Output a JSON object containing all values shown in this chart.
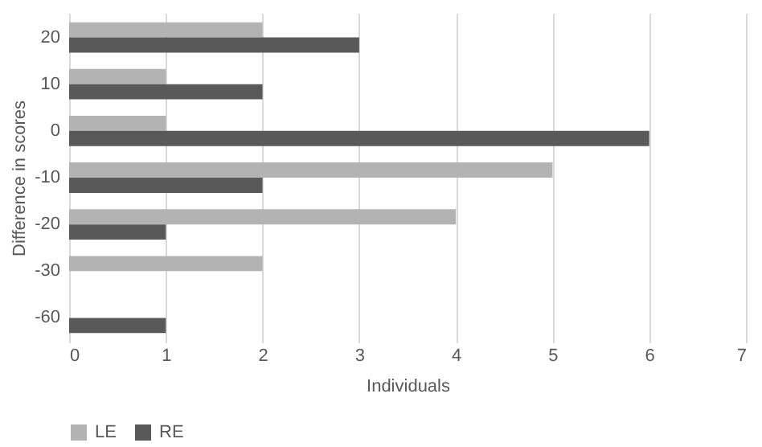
{
  "chart_data": {
    "type": "bar",
    "orientation": "horizontal",
    "xlabel": "Individuals",
    "ylabel": "Difference in scores",
    "categories": [
      "20",
      "10",
      "0",
      "-10",
      "-20",
      "-30",
      "-60"
    ],
    "series": [
      {
        "name": "LE",
        "color": "#b3b3b3",
        "values": [
          2,
          1,
          1,
          5,
          4,
          2,
          null
        ]
      },
      {
        "name": "RE",
        "color": "#595959",
        "values": [
          3,
          2,
          6,
          2,
          1,
          null,
          1
        ]
      }
    ],
    "xlim": [
      0,
      7
    ],
    "xticks": [
      0,
      1,
      2,
      3,
      4,
      5,
      6,
      7
    ],
    "grid": "x",
    "legend": "bottom"
  }
}
